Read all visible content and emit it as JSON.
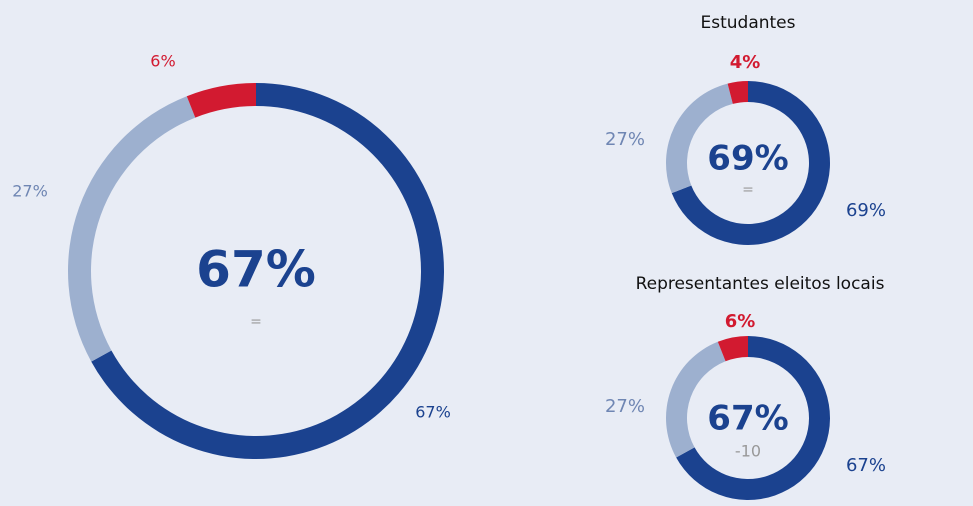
{
  "chart_data": [
    {
      "type": "donut",
      "values": [
        67,
        27,
        6
      ],
      "value_labels": [
        "67%",
        "27%",
        "6%"
      ],
      "colors": [
        "#1b428f",
        "#9db0cf",
        "#d21a30"
      ],
      "change": "="
    },
    {
      "type": "donut",
      "title": "Estudantes",
      "values": [
        69,
        27,
        4
      ],
      "value_labels": [
        "69%",
        "27%",
        "4%"
      ],
      "colors": [
        "#1b428f",
        "#9db0cf",
        "#d21a30"
      ],
      "change": "="
    },
    {
      "type": "donut",
      "title": "Representantes eleitos locais",
      "values": [
        67,
        27,
        6
      ],
      "value_labels": [
        "67%",
        "27%",
        "6%"
      ],
      "colors": [
        "#1b428f",
        "#9db0cf",
        "#d21a30"
      ],
      "change": "-10"
    }
  ]
}
